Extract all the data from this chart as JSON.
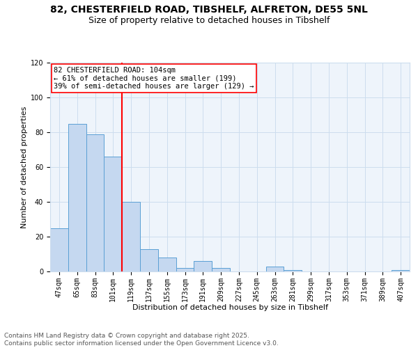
{
  "title_line1": "82, CHESTERFIELD ROAD, TIBSHELF, ALFRETON, DE55 5NL",
  "title_line2": "Size of property relative to detached houses in Tibshelf",
  "xlabel": "Distribution of detached houses by size in Tibshelf",
  "ylabel": "Number of detached properties",
  "categories": [
    "47sqm",
    "65sqm",
    "83sqm",
    "101sqm",
    "119sqm",
    "137sqm",
    "155sqm",
    "173sqm",
    "191sqm",
    "209sqm",
    "227sqm",
    "245sqm",
    "263sqm",
    "281sqm",
    "299sqm",
    "317sqm",
    "353sqm",
    "371sqm",
    "389sqm",
    "407sqm"
  ],
  "values": [
    25,
    85,
    79,
    66,
    40,
    13,
    8,
    2,
    6,
    2,
    0,
    0,
    3,
    1,
    0,
    0,
    0,
    0,
    0,
    1
  ],
  "bar_color": "#c5d8f0",
  "bar_edge_color": "#5a9fd4",
  "vline_x": 3.5,
  "vline_color": "red",
  "annotation_text": "82 CHESTERFIELD ROAD: 104sqm\n← 61% of detached houses are smaller (199)\n39% of semi-detached houses are larger (129) →",
  "annotation_box_color": "white",
  "annotation_box_edge": "red",
  "ylim": [
    0,
    120
  ],
  "yticks": [
    0,
    20,
    40,
    60,
    80,
    100,
    120
  ],
  "grid_color": "#ccddee",
  "bg_color": "#eef4fb",
  "footer_text": "Contains HM Land Registry data © Crown copyright and database right 2025.\nContains public sector information licensed under the Open Government Licence v3.0.",
  "title_fontsize": 10,
  "subtitle_fontsize": 9,
  "axis_label_fontsize": 8,
  "tick_fontsize": 7,
  "annotation_fontsize": 7.5,
  "footer_fontsize": 6.5
}
